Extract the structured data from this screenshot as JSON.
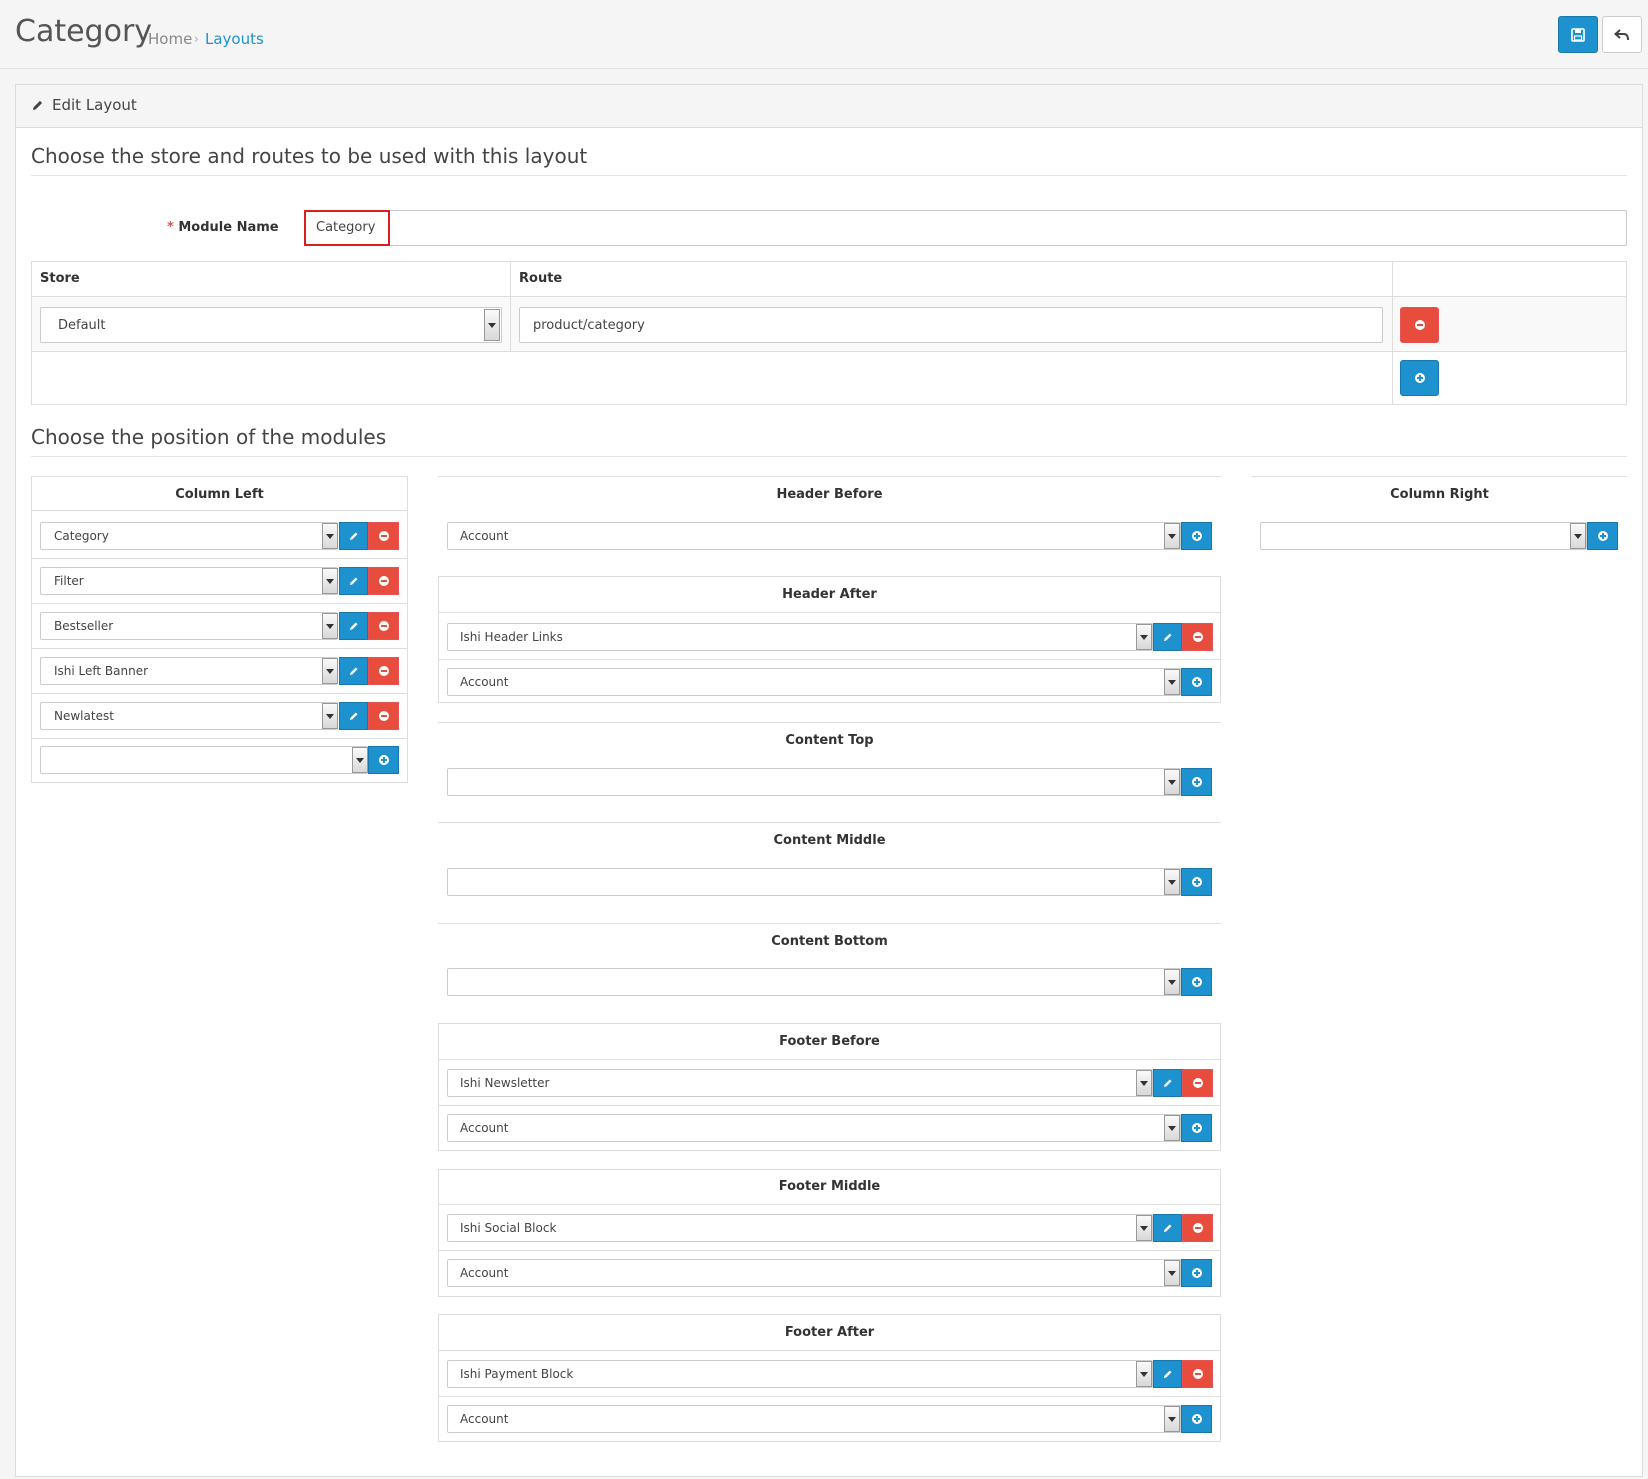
{
  "header": {
    "title": "Category",
    "breadcrumb": {
      "home": "Home",
      "sep": "›",
      "current": "Layouts"
    }
  },
  "panel": {
    "title": "Edit Layout",
    "section_routes": "Choose the store and routes to be used with this layout",
    "section_modules": "Choose the position of the modules"
  },
  "form": {
    "name_label": "Module Name",
    "required_star": "*",
    "name_value": "Category"
  },
  "routes_table": {
    "col_store": "Store",
    "col_route": "Route",
    "rows": [
      {
        "store": "Default",
        "route": "product/category"
      }
    ]
  },
  "positions": {
    "column_left": {
      "title": "Column Left",
      "modules": [
        "Category",
        "Filter",
        "Bestseller",
        "Ishi Left Banner",
        "Newlatest"
      ],
      "add_value": ""
    },
    "header_before": {
      "title": "Header Before",
      "modules": [],
      "add_value": "Account"
    },
    "header_after": {
      "title": "Header After",
      "modules": [
        "Ishi Header Links"
      ],
      "add_value": "Account"
    },
    "content_top": {
      "title": "Content Top",
      "modules": [],
      "add_value": ""
    },
    "content_middle": {
      "title": "Content Middle",
      "modules": [],
      "add_value": ""
    },
    "content_bottom": {
      "title": "Content Bottom",
      "modules": [],
      "add_value": ""
    },
    "footer_before": {
      "title": "Footer Before",
      "modules": [
        "Ishi Newsletter"
      ],
      "add_value": "Account"
    },
    "footer_middle": {
      "title": "Footer Middle",
      "modules": [
        "Ishi Social Block"
      ],
      "add_value": "Account"
    },
    "footer_after": {
      "title": "Footer After",
      "modules": [
        "Ishi Payment Block"
      ],
      "add_value": "Account"
    },
    "column_right": {
      "title": "Column Right",
      "modules": [],
      "add_value": ""
    }
  },
  "colors": {
    "primary": "#1e91cf",
    "danger": "#e74c3c",
    "required": "#d9534f",
    "highlight": "#d81f1f"
  },
  "icons": {
    "save": "save-icon",
    "back": "reply-icon",
    "edit": "pencil-icon",
    "add": "plus-circle-icon",
    "remove": "minus-circle-icon"
  }
}
